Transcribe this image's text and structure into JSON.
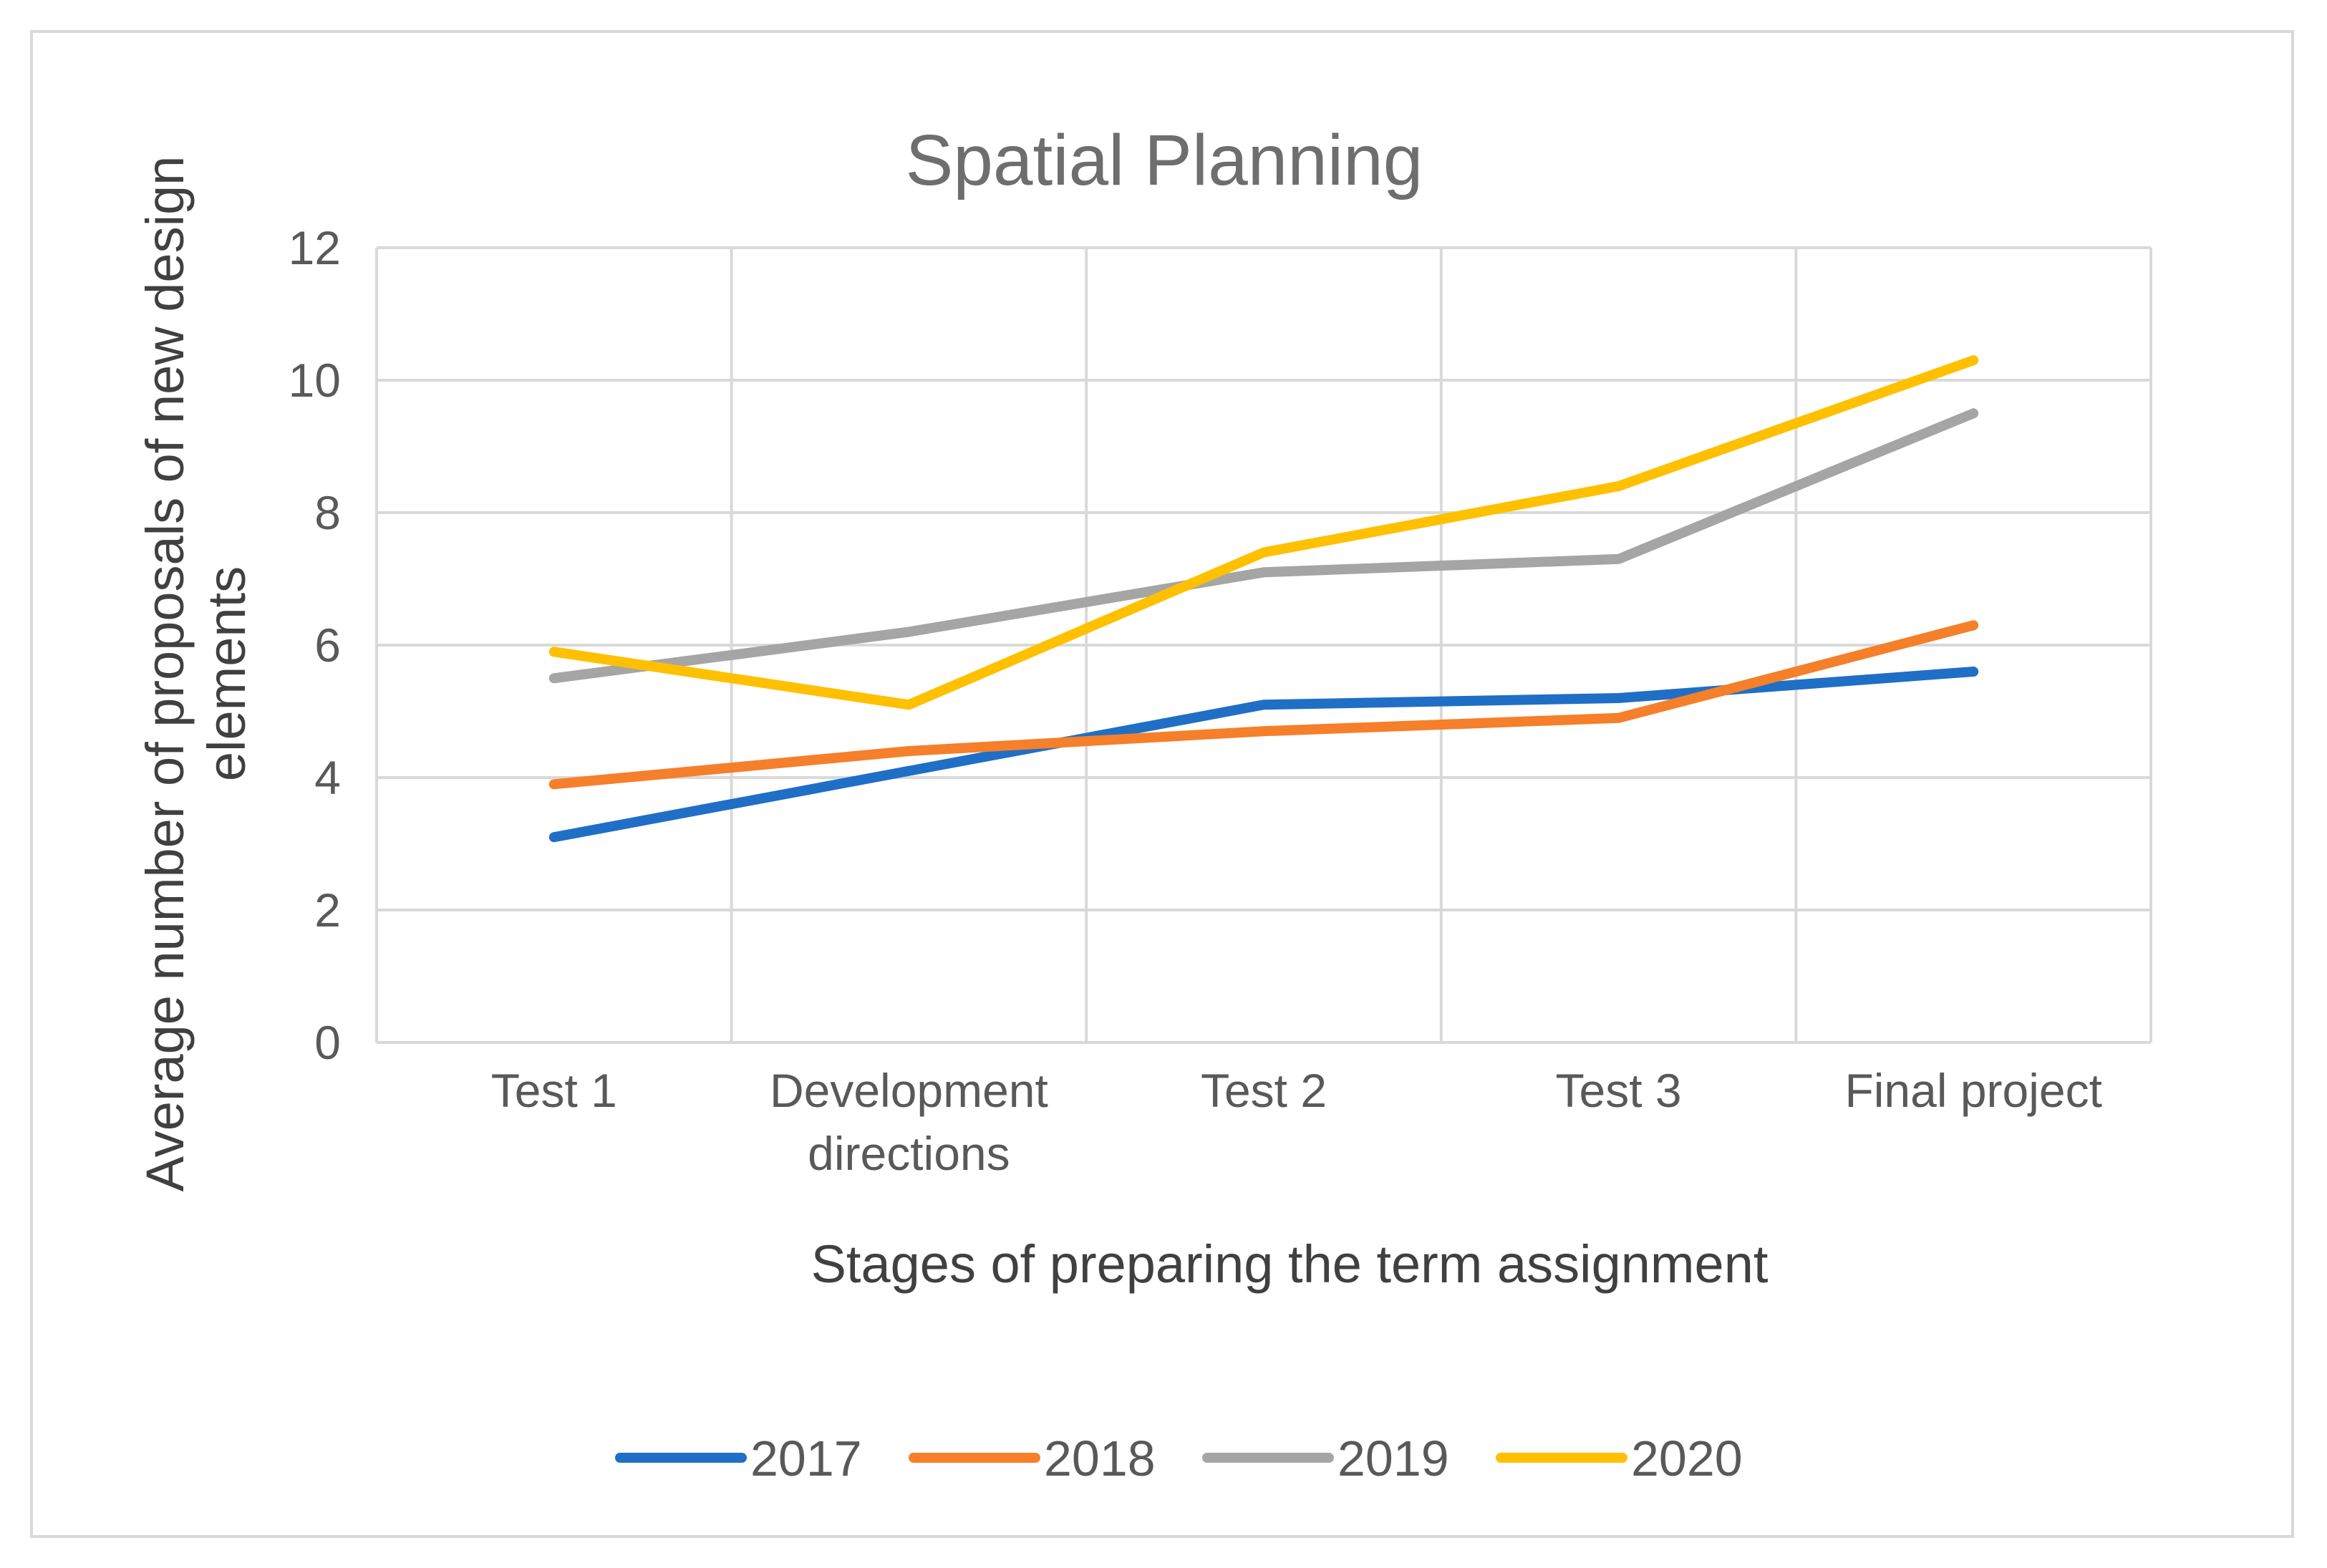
{
  "chart_data": {
    "type": "line",
    "title": "Spatial Planning",
    "xlabel": "Stages of preparing the term assignment",
    "ylabel": "Average number of proposals of new design elements",
    "ylabel_lines": [
      "Average number of proposals of new design",
      "elements"
    ],
    "categories": [
      "Test 1",
      "Development directions",
      "Test 2",
      "Test 3",
      "Final project"
    ],
    "category_lines": [
      [
        "Test 1"
      ],
      [
        "Development",
        "directions"
      ],
      [
        "Test 2"
      ],
      [
        "Test 3"
      ],
      [
        "Final project"
      ]
    ],
    "ylim": [
      0,
      12
    ],
    "yticks": [
      0,
      2,
      4,
      6,
      8,
      10,
      12
    ],
    "grid": true,
    "legend_position": "bottom",
    "series": [
      {
        "name": "2017",
        "color": "#1f6fc6",
        "values": [
          3.1,
          4.1,
          5.1,
          5.2,
          5.6
        ]
      },
      {
        "name": "2018",
        "color": "#f57f2a",
        "values": [
          3.9,
          4.4,
          4.7,
          4.9,
          6.3
        ]
      },
      {
        "name": "2019",
        "color": "#a5a5a5",
        "values": [
          5.5,
          6.2,
          7.1,
          7.3,
          9.5
        ]
      },
      {
        "name": "2020",
        "color": "#ffc000",
        "values": [
          5.9,
          5.1,
          7.4,
          8.4,
          10.3
        ]
      }
    ]
  }
}
